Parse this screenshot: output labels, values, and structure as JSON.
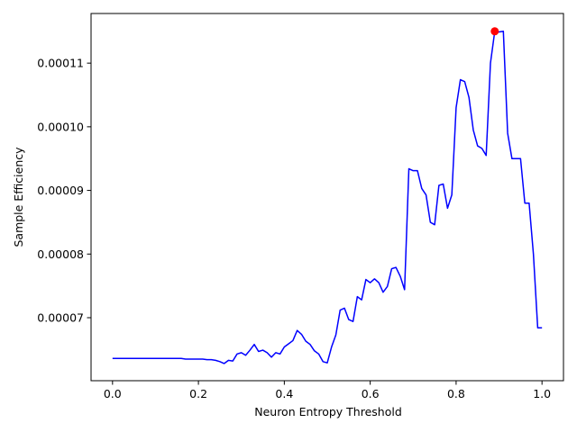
{
  "chart_data": {
    "type": "line",
    "title": "",
    "xlabel": "Neuron Entropy Threshold",
    "ylabel": "Sample Efficiency",
    "xlim": [
      -0.05,
      1.05
    ],
    "ylim": [
      6.01e-05,
      0.0001178
    ],
    "grid": false,
    "legend": "none",
    "x_ticks": [
      {
        "value": 0.0,
        "label": "0.0"
      },
      {
        "value": 0.2,
        "label": "0.2"
      },
      {
        "value": 0.4,
        "label": "0.4"
      },
      {
        "value": 0.6,
        "label": "0.6"
      },
      {
        "value": 0.8,
        "label": "0.8"
      },
      {
        "value": 1.0,
        "label": "1.0"
      }
    ],
    "y_ticks": [
      {
        "value": 7e-05,
        "label": "0.00007"
      },
      {
        "value": 8e-05,
        "label": "0.00008"
      },
      {
        "value": 9e-05,
        "label": "0.00009"
      },
      {
        "value": 0.0001,
        "label": "0.00010"
      },
      {
        "value": 0.00011,
        "label": "0.00011"
      }
    ],
    "series": [
      {
        "color": "#0000ff",
        "points": [
          [
            0.0,
            6.36e-05
          ],
          [
            0.05,
            6.36e-05
          ],
          [
            0.1,
            6.36e-05
          ],
          [
            0.16,
            6.36e-05
          ],
          [
            0.17,
            6.35e-05
          ],
          [
            0.19,
            6.35e-05
          ],
          [
            0.21,
            6.35e-05
          ],
          [
            0.22,
            6.34e-05
          ],
          [
            0.23,
            6.34e-05
          ],
          [
            0.24,
            6.33e-05
          ],
          [
            0.25,
            6.31e-05
          ],
          [
            0.26,
            6.28e-05
          ],
          [
            0.27,
            6.33e-05
          ],
          [
            0.28,
            6.32e-05
          ],
          [
            0.29,
            6.43e-05
          ],
          [
            0.3,
            6.45e-05
          ],
          [
            0.31,
            6.41e-05
          ],
          [
            0.32,
            6.49e-05
          ],
          [
            0.33,
            6.58e-05
          ],
          [
            0.34,
            6.47e-05
          ],
          [
            0.35,
            6.49e-05
          ],
          [
            0.36,
            6.45e-05
          ],
          [
            0.37,
            6.38e-05
          ],
          [
            0.38,
            6.45e-05
          ],
          [
            0.39,
            6.43e-05
          ],
          [
            0.4,
            6.54e-05
          ],
          [
            0.41,
            6.59e-05
          ],
          [
            0.42,
            6.64e-05
          ],
          [
            0.43,
            6.8e-05
          ],
          [
            0.44,
            6.74e-05
          ],
          [
            0.45,
            6.63e-05
          ],
          [
            0.46,
            6.58e-05
          ],
          [
            0.47,
            6.48e-05
          ],
          [
            0.48,
            6.43e-05
          ],
          [
            0.49,
            6.31e-05
          ],
          [
            0.5,
            6.29e-05
          ],
          [
            0.51,
            6.54e-05
          ],
          [
            0.52,
            6.73e-05
          ],
          [
            0.53,
            7.12e-05
          ],
          [
            0.54,
            7.15e-05
          ],
          [
            0.55,
            6.97e-05
          ],
          [
            0.56,
            6.94e-05
          ],
          [
            0.57,
            7.33e-05
          ],
          [
            0.58,
            7.28e-05
          ],
          [
            0.59,
            7.6e-05
          ],
          [
            0.6,
            7.55e-05
          ],
          [
            0.61,
            7.61e-05
          ],
          [
            0.62,
            7.55e-05
          ],
          [
            0.63,
            7.4e-05
          ],
          [
            0.64,
            7.49e-05
          ],
          [
            0.65,
            7.77e-05
          ],
          [
            0.66,
            7.79e-05
          ],
          [
            0.67,
            7.65e-05
          ],
          [
            0.68,
            7.44e-05
          ],
          [
            0.69,
            9.34e-05
          ],
          [
            0.7,
            9.31e-05
          ],
          [
            0.71,
            9.31e-05
          ],
          [
            0.72,
            9.03e-05
          ],
          [
            0.73,
            8.93e-05
          ],
          [
            0.74,
            8.5e-05
          ],
          [
            0.75,
            8.46e-05
          ],
          [
            0.76,
            9.08e-05
          ],
          [
            0.77,
            9.1e-05
          ],
          [
            0.78,
            8.72e-05
          ],
          [
            0.79,
            8.93e-05
          ],
          [
            0.8,
            0.000103
          ],
          [
            0.81,
            0.0001074
          ],
          [
            0.82,
            0.0001071
          ],
          [
            0.83,
            0.0001046
          ],
          [
            0.84,
            9.95e-05
          ],
          [
            0.85,
            9.7e-05
          ],
          [
            0.86,
            9.66e-05
          ],
          [
            0.87,
            9.55e-05
          ],
          [
            0.88,
            0.00011
          ],
          [
            0.89,
            0.000115
          ],
          [
            0.9,
            0.0001149
          ],
          [
            0.91,
            0.000115
          ],
          [
            0.92,
            9.9e-05
          ],
          [
            0.93,
            9.5e-05
          ],
          [
            0.94,
            9.5e-05
          ],
          [
            0.95,
            9.5e-05
          ],
          [
            0.96,
            8.8e-05
          ],
          [
            0.97,
            8.8e-05
          ],
          [
            0.98,
            8e-05
          ],
          [
            0.99,
            6.84e-05
          ],
          [
            1.0,
            6.84e-05
          ]
        ]
      }
    ],
    "highlight_point": {
      "x": 0.89,
      "y": 0.000115,
      "color": "#ff0000"
    }
  }
}
